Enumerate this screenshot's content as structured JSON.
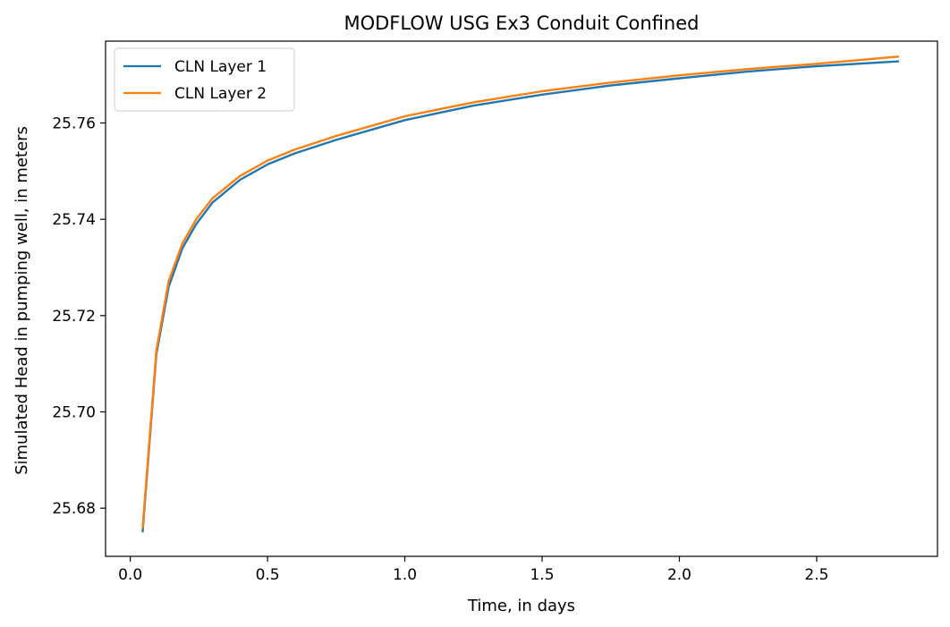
{
  "chart_data": {
    "type": "line",
    "title": "MODFLOW USG Ex3 Conduit Confined",
    "xlabel": "Time, in days",
    "ylabel": "Simulated Head in pumping well, in meters",
    "xlim": [
      -0.09,
      2.94
    ],
    "ylim": [
      25.67,
      25.777
    ],
    "xticks": [
      0.0,
      0.5,
      1.0,
      1.5,
      2.0,
      2.5
    ],
    "xtick_labels": [
      "0.0",
      "0.5",
      "1.0",
      "1.5",
      "2.0",
      "2.5"
    ],
    "yticks": [
      25.68,
      25.7,
      25.72,
      25.74,
      25.76
    ],
    "ytick_labels": [
      "25.68",
      "25.70",
      "25.72",
      "25.74",
      "25.76"
    ],
    "grid": false,
    "legend_position": "top-left",
    "series": [
      {
        "name": "CLN Layer 1",
        "color": "#1f77b4",
        "x": [
          0.045,
          0.095,
          0.14,
          0.19,
          0.24,
          0.3,
          0.4,
          0.5,
          0.6,
          0.75,
          1.0,
          1.25,
          1.5,
          1.75,
          2.0,
          2.25,
          2.5,
          2.8
        ],
        "y": [
          25.675,
          25.712,
          25.726,
          25.734,
          25.739,
          25.7435,
          25.7482,
          25.7514,
          25.7537,
          25.7565,
          25.7606,
          25.7636,
          25.7659,
          25.7678,
          25.7693,
          25.7707,
          25.7718,
          25.7728
        ]
      },
      {
        "name": "CLN Layer 2",
        "color": "#ff7f0e",
        "x": [
          0.045,
          0.095,
          0.14,
          0.19,
          0.24,
          0.3,
          0.4,
          0.5,
          0.6,
          0.75,
          1.0,
          1.25,
          1.5,
          1.75,
          2.0,
          2.25,
          2.5,
          2.8
        ],
        "y": [
          25.6758,
          25.7128,
          25.7272,
          25.735,
          25.74,
          25.7444,
          25.749,
          25.7522,
          25.7545,
          25.7573,
          25.7614,
          25.7643,
          25.7666,
          25.7684,
          25.7699,
          25.7712,
          25.7723,
          25.7738
        ]
      }
    ]
  }
}
